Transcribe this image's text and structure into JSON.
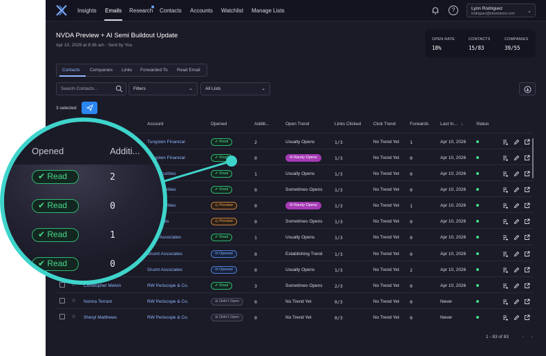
{
  "nav": {
    "items": [
      "Insights",
      "Emails",
      "Research",
      "Contacts",
      "Accounts",
      "Watchlist",
      "Manage Lists"
    ],
    "user_name": "Lynn Rodriguez",
    "user_email": "lrodriguez@streetstone.com"
  },
  "header": {
    "title": "NVDA Preview + AI Semi Buildout Update",
    "subtitle": "Apr 10, 2026 at 8:36 am - Sent by You"
  },
  "stats": {
    "open_rate_label": "OPEN RATE",
    "open_rate": "18%",
    "contacts_label": "CONTACTS",
    "contacts": "15/83",
    "companies_label": "COMPANIES",
    "companies": "39/55"
  },
  "tabs": [
    "Contacts",
    "Companies",
    "Links",
    "Forwarded To",
    "Read Email"
  ],
  "filters": {
    "search_placeholder": "Search Contacts...",
    "filters_label": "Filters",
    "lists_label": "All Lists"
  },
  "selection": {
    "text": "3 selected"
  },
  "table": {
    "columns": [
      "Account",
      "Opened",
      "Additi...",
      "Open Trend",
      "Links Clicked",
      "Click Trend",
      "Forwards",
      "Last In..."
    ],
    "status_label": "Status",
    "rows": [
      {
        "name": "",
        "account": "Tungsten Financial",
        "opened": "Read",
        "additional": "2",
        "trend": "Usually Opens",
        "links": "1/3",
        "click_trend": "No Trend Yet",
        "forwards": "1",
        "last": "Apr 10, 2026"
      },
      {
        "name": "",
        "account": "Tungsten Financial",
        "opened": "Read",
        "additional": "0",
        "trend": "Rarely Opens",
        "links": "1/3",
        "click_trend": "No Trend Yet",
        "forwards": "0",
        "last": "Apr 10, 2026"
      },
      {
        "name": "",
        "account": "Elm Securities",
        "opened": "Read",
        "additional": "1",
        "trend": "Usually Opens",
        "links": "1/3",
        "click_trend": "No Trend Yet",
        "forwards": "0",
        "last": "Apr 10, 2026"
      },
      {
        "name": "",
        "account": "Elm Securities",
        "opened": "Read",
        "additional": "0",
        "trend": "Sometimes Opens",
        "links": "1/3",
        "click_trend": "No Trend Yet",
        "forwards": "0",
        "last": "Apr 10, 2026"
      },
      {
        "name": "",
        "account": "Elm Securities",
        "opened": "Preview",
        "additional": "0",
        "trend": "Rarely Opens",
        "links": "1/3",
        "click_trend": "No Trend Yet",
        "forwards": "1",
        "last": "Apr 10, 2026"
      },
      {
        "name": "",
        "account": "Associates",
        "opened": "Preview",
        "additional": "0",
        "trend": "Sometimes Opens",
        "links": "1/3",
        "click_trend": "No Trend Yet",
        "forwards": "0",
        "last": "Apr 10, 2026"
      },
      {
        "name": "",
        "account": "Grunt Associates",
        "opened": "Read",
        "additional": "1",
        "trend": "Usually Opens",
        "links": "1/3",
        "click_trend": "No Trend Yet",
        "forwards": "0",
        "last": "Apr 10, 2026"
      },
      {
        "name": "",
        "account": "Grumt Associates",
        "opened": "Opened",
        "additional": "0",
        "trend": "Establishing Trend",
        "links": "1/3",
        "click_trend": "No Trend Yet",
        "forwards": "0",
        "last": "Apr 10, 2026"
      },
      {
        "name": "",
        "account": "Grumt Associates",
        "opened": "Opened",
        "additional": "0",
        "trend": "Usually Opens",
        "links": "1/3",
        "click_trend": "No Trend Yet",
        "forwards": "2",
        "last": "Apr 10, 2026"
      },
      {
        "name": "Christopher Melvin",
        "account": "RW Periscope & Co.",
        "opened": "Read",
        "additional": "3",
        "trend": "Sometimes Opens",
        "links": "2/3",
        "click_trend": "No Trend Yet",
        "forwards": "0",
        "last": "Apr 10, 2026"
      },
      {
        "name": "Nonna Terrant",
        "account": "RW Periscope & Co.",
        "opened": "Didn't Open",
        "additional": "0",
        "trend": "No Trend Yet",
        "links": "0/3",
        "click_trend": "No Trend Yet",
        "forwards": "0",
        "last": "Never"
      },
      {
        "name": "Sheryl Matthews",
        "account": "RW Periscope & Co.",
        "opened": "Didn't Open",
        "additional": "0",
        "trend": "No Trend Yet",
        "links": "0/3",
        "click_trend": "No Trend Yet",
        "forwards": "0",
        "last": "Never"
      }
    ]
  },
  "pager": {
    "text": "1 - 83 of 83"
  },
  "magnifier": {
    "opened_header": "Opened",
    "additional_header": "Additi...",
    "rows": [
      {
        "opened": "Read",
        "additional": "2"
      },
      {
        "opened": "Read",
        "additional": "0"
      },
      {
        "opened": "Read",
        "additional": "1"
      },
      {
        "opened": "Read",
        "additional": "0"
      }
    ]
  },
  "colors": {
    "accent": "#2b86f0",
    "magnifier_ring": "#3fd4cb",
    "read": "#49d98c",
    "preview": "#f0a054",
    "opened": "#7fb0ff",
    "rarely": "#a53ab5"
  }
}
